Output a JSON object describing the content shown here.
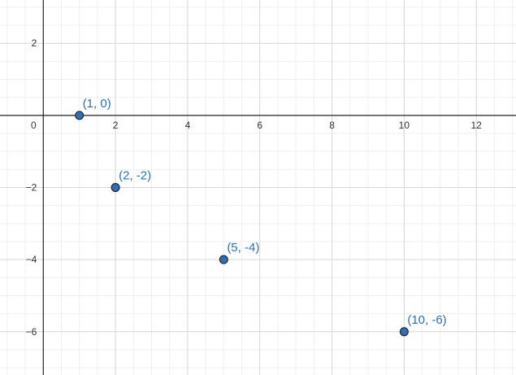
{
  "chart_data": {
    "type": "scatter",
    "title": "",
    "xlabel": "",
    "ylabel": "",
    "xlim": [
      -1.2,
      13.1
    ],
    "ylim": [
      -7.2,
      3.2
    ],
    "grid": true,
    "minor_grid": true,
    "x_ticks": [
      0,
      2,
      4,
      6,
      8,
      10,
      12
    ],
    "y_ticks": [
      -6,
      -4,
      -2,
      2
    ],
    "point_color": "#2d70b3",
    "label_color": "#2d70b3",
    "points": [
      {
        "x": 1,
        "y": 0,
        "label": "(1, 0)"
      },
      {
        "x": 2,
        "y": -2,
        "label": "(2, -2)"
      },
      {
        "x": 5,
        "y": -4,
        "label": "(5, -4)"
      },
      {
        "x": 10,
        "y": -6,
        "label": "(10, -6)"
      }
    ]
  }
}
